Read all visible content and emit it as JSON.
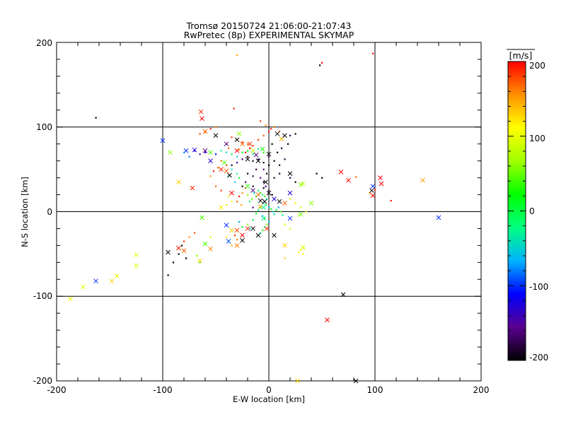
{
  "chart_data": {
    "type": "scatter",
    "title": "Tromsø 20150724 21:06:00-21:07:43",
    "subtitle": "RwPretec (8p) EXPERIMENTAL SKYMAP",
    "xlabel": "E-W location [km]",
    "ylabel": "N-S location [km]",
    "xlim": [
      -200,
      200
    ],
    "ylim": [
      -200,
      200
    ],
    "x_ticks": [
      "-200",
      "-100",
      "0",
      "100",
      "200"
    ],
    "y_ticks": [
      "-200",
      "-100",
      "0",
      "100",
      "200"
    ],
    "grid": "major lines at 0 and ±100 km",
    "colorbar": {
      "label": "[m/s]",
      "range": [
        -200,
        200
      ],
      "ticks": [
        "200",
        "100",
        "0",
        "-100",
        "-200"
      ],
      "colormap": [
        "#000000",
        "#5a0090",
        "#0000ff",
        "#00b4ff",
        "#00ff80",
        "#00ff00",
        "#a0ff00",
        "#ffff00",
        "#ff9000",
        "#ff0000"
      ]
    },
    "points_dot": [
      [
        -30,
        185,
        150
      ],
      [
        50,
        176,
        200
      ],
      [
        48,
        173,
        -200
      ],
      [
        98,
        187,
        200
      ],
      [
        -163,
        111,
        -200
      ],
      [
        -65,
        92,
        180
      ],
      [
        -60,
        94,
        170
      ],
      [
        -55,
        98,
        190
      ],
      [
        -50,
        100,
        160
      ],
      [
        -35,
        88,
        180
      ],
      [
        -30,
        85,
        170
      ],
      [
        -25,
        82,
        190
      ],
      [
        -20,
        80,
        160
      ],
      [
        -15,
        78,
        180
      ],
      [
        -40,
        80,
        190
      ],
      [
        -38,
        75,
        170
      ],
      [
        -28,
        73,
        150
      ],
      [
        -22,
        70,
        190
      ],
      [
        -18,
        75,
        200
      ],
      [
        -10,
        85,
        180
      ],
      [
        -5,
        90,
        170
      ],
      [
        0,
        95,
        190
      ],
      [
        5,
        100,
        160
      ],
      [
        10,
        95,
        170
      ],
      [
        -45,
        72,
        -30
      ],
      [
        -40,
        70,
        -40
      ],
      [
        -35,
        68,
        0
      ],
      [
        -30,
        65,
        -50
      ],
      [
        -25,
        70,
        20
      ],
      [
        -20,
        72,
        10
      ],
      [
        -15,
        68,
        -20
      ],
      [
        -10,
        74,
        -30
      ],
      [
        -5,
        70,
        30
      ],
      [
        -50,
        68,
        -100
      ],
      [
        -60,
        70,
        -130
      ],
      [
        -65,
        68,
        -150
      ],
      [
        -70,
        72,
        -120
      ],
      [
        -75,
        65,
        -80
      ],
      [
        -80,
        70,
        -60
      ],
      [
        -20,
        65,
        -200
      ],
      [
        -15,
        60,
        -190
      ],
      [
        -10,
        62,
        -180
      ],
      [
        -5,
        58,
        -200
      ],
      [
        0,
        65,
        -170
      ],
      [
        5,
        60,
        -200
      ],
      [
        10,
        55,
        -190
      ],
      [
        15,
        62,
        -180
      ],
      [
        0,
        55,
        -200
      ],
      [
        -5,
        50,
        -160
      ],
      [
        -12,
        50,
        -180
      ],
      [
        -25,
        62,
        -170
      ],
      [
        -30,
        58,
        -150
      ],
      [
        -35,
        55,
        -190
      ],
      [
        8,
        70,
        -200
      ],
      [
        12,
        75,
        -180
      ],
      [
        18,
        80,
        -200
      ],
      [
        20,
        90,
        -170
      ],
      [
        25,
        92,
        -200
      ],
      [
        3,
        80,
        -200
      ],
      [
        -2,
        45,
        -200
      ],
      [
        5,
        40,
        -190
      ],
      [
        10,
        45,
        -180
      ],
      [
        -8,
        40,
        -150
      ],
      [
        -15,
        42,
        -170
      ],
      [
        -20,
        45,
        -200
      ],
      [
        -22,
        35,
        -160
      ],
      [
        -25,
        30,
        -200
      ],
      [
        -15,
        30,
        -180
      ],
      [
        -5,
        35,
        -190
      ],
      [
        -10,
        25,
        0
      ],
      [
        -8,
        22,
        30
      ],
      [
        -6,
        20,
        -20
      ],
      [
        -4,
        18,
        40
      ],
      [
        -2,
        15,
        -40
      ],
      [
        -12,
        18,
        20
      ],
      [
        -14,
        22,
        -30
      ],
      [
        -16,
        15,
        50
      ],
      [
        -18,
        12,
        -10
      ],
      [
        -20,
        20,
        60
      ],
      [
        -5,
        10,
        -50
      ],
      [
        -3,
        8,
        10
      ],
      [
        0,
        5,
        -60
      ],
      [
        2,
        3,
        30
      ],
      [
        4,
        0,
        -40
      ],
      [
        -8,
        5,
        40
      ],
      [
        -10,
        2,
        -20
      ],
      [
        -12,
        -2,
        20
      ],
      [
        -6,
        -5,
        -60
      ],
      [
        -4,
        -8,
        30
      ],
      [
        5,
        -3,
        -40
      ],
      [
        7,
        2,
        10
      ],
      [
        9,
        5,
        -70
      ],
      [
        11,
        0,
        40
      ],
      [
        13,
        -4,
        -30
      ],
      [
        0,
        -12,
        -60
      ],
      [
        -2,
        -15,
        50
      ],
      [
        -4,
        -18,
        -20
      ],
      [
        -6,
        -22,
        30
      ],
      [
        -8,
        -25,
        -40
      ],
      [
        -15,
        -10,
        0
      ],
      [
        -20,
        -15,
        60
      ],
      [
        -18,
        -20,
        -50
      ],
      [
        -25,
        -18,
        20
      ],
      [
        -28,
        -12,
        -70
      ],
      [
        -5,
        28,
        -200
      ],
      [
        -3,
        30,
        -150
      ],
      [
        0,
        25,
        -180
      ],
      [
        3,
        20,
        -200
      ],
      [
        -15,
        5,
        -160
      ],
      [
        -22,
        28,
        180
      ],
      [
        -25,
        22,
        160
      ],
      [
        -28,
        18,
        190
      ],
      [
        -30,
        12,
        170
      ],
      [
        -26,
        8,
        150
      ],
      [
        -35,
        12,
        100
      ],
      [
        -40,
        8,
        120
      ],
      [
        -38,
        18,
        90
      ],
      [
        20,
        15,
        100
      ],
      [
        25,
        10,
        120
      ],
      [
        30,
        5,
        80
      ],
      [
        35,
        0,
        110
      ],
      [
        28,
        -5,
        90
      ],
      [
        15,
        -15,
        100
      ],
      [
        20,
        -20,
        80
      ],
      [
        -70,
        -25,
        180
      ],
      [
        -75,
        -30,
        160
      ],
      [
        -80,
        -35,
        190
      ],
      [
        -82,
        -40,
        -200
      ],
      [
        -90,
        -60,
        -200
      ],
      [
        -95,
        -75,
        -200
      ],
      [
        -85,
        -50,
        -200
      ],
      [
        -78,
        -55,
        -200
      ],
      [
        -65,
        -60,
        40
      ],
      [
        -68,
        -52,
        60
      ],
      [
        -40,
        -30,
        120
      ],
      [
        -38,
        -35,
        100
      ],
      [
        -35,
        -40,
        140
      ],
      [
        -32,
        -28,
        180
      ],
      [
        -30,
        -33,
        160
      ],
      [
        30,
        -45,
        100
      ],
      [
        32,
        -50,
        110
      ],
      [
        28,
        -48,
        120
      ],
      [
        33,
        -43,
        90
      ],
      [
        15,
        -55,
        130
      ],
      [
        45,
        45,
        -200
      ],
      [
        50,
        40,
        -200
      ],
      [
        20,
        40,
        -180
      ],
      [
        25,
        35,
        -200
      ],
      [
        -55,
        -30,
        90
      ],
      [
        115,
        13,
        200
      ],
      [
        100,
        26,
        180
      ],
      [
        95,
        22,
        160
      ],
      [
        82,
        41,
        170
      ],
      [
        -33,
        122,
        190
      ],
      [
        -8,
        107,
        180
      ],
      [
        -3,
        102,
        160
      ],
      [
        2,
        98,
        190
      ],
      [
        -40,
        55,
        180
      ],
      [
        -45,
        60,
        160
      ],
      [
        -48,
        52,
        170
      ],
      [
        -52,
        48,
        190
      ],
      [
        -55,
        42,
        150
      ],
      [
        -50,
        30,
        170
      ],
      [
        -45,
        25,
        180
      ],
      [
        -35,
        50,
        -40
      ],
      [
        -30,
        45,
        -20
      ],
      [
        -28,
        40,
        0
      ],
      [
        -32,
        35,
        -60
      ],
      [
        -38,
        42,
        -30
      ]
    ],
    "points_x": [
      [
        -100,
        84,
        -100
      ],
      [
        -93,
        70,
        60
      ],
      [
        -78,
        72,
        -100
      ],
      [
        -70,
        73,
        -130
      ],
      [
        -60,
        95,
        170
      ],
      [
        -63,
        110,
        200
      ],
      [
        -64,
        118,
        190
      ],
      [
        -55,
        70,
        40
      ],
      [
        -42,
        58,
        40
      ],
      [
        -30,
        72,
        200
      ],
      [
        -25,
        80,
        170
      ],
      [
        -15,
        72,
        90
      ],
      [
        -10,
        60,
        -200
      ],
      [
        0,
        68,
        -200
      ],
      [
        8,
        92,
        -200
      ],
      [
        12,
        86,
        140
      ],
      [
        15,
        90,
        -200
      ],
      [
        20,
        45,
        -200
      ],
      [
        -20,
        30,
        30
      ],
      [
        -10,
        20,
        170
      ],
      [
        -15,
        25,
        -160
      ],
      [
        5,
        15,
        -130
      ],
      [
        15,
        10,
        170
      ],
      [
        30,
        32,
        60
      ],
      [
        40,
        10,
        60
      ],
      [
        30,
        -3,
        50
      ],
      [
        20,
        -8,
        -100
      ],
      [
        -2,
        -20,
        190
      ],
      [
        -8,
        13,
        -200
      ],
      [
        -5,
        5,
        -30
      ],
      [
        -5,
        -8,
        -30
      ],
      [
        -20,
        -20,
        190
      ],
      [
        -30,
        -22,
        180
      ],
      [
        -25,
        -28,
        200
      ],
      [
        -35,
        -22,
        130
      ],
      [
        -40,
        -16,
        -100
      ],
      [
        -38,
        -35,
        -90
      ],
      [
        -25,
        -34,
        -200
      ],
      [
        -15,
        -20,
        -200
      ],
      [
        -10,
        -28,
        -200
      ],
      [
        -30,
        -40,
        160
      ],
      [
        -55,
        -44,
        160
      ],
      [
        -80,
        -46,
        170
      ],
      [
        -95,
        -48,
        -200
      ],
      [
        -85,
        -43,
        190
      ],
      [
        -65,
        -58,
        130
      ],
      [
        -60,
        -38,
        40
      ],
      [
        -63,
        -7,
        40
      ],
      [
        -72,
        28,
        190
      ],
      [
        -85,
        35,
        130
      ],
      [
        -45,
        5,
        120
      ],
      [
        -35,
        22,
        200
      ],
      [
        -37,
        43,
        -200
      ],
      [
        -40,
        48,
        170
      ],
      [
        -45,
        50,
        190
      ],
      [
        -55,
        60,
        -130
      ],
      [
        -60,
        72,
        -160
      ],
      [
        -50,
        90,
        -200
      ],
      [
        -40,
        80,
        -160
      ],
      [
        -30,
        85,
        -200
      ],
      [
        -28,
        92,
        60
      ],
      [
        -18,
        80,
        190
      ],
      [
        -12,
        67,
        -160
      ],
      [
        -6,
        74,
        30
      ],
      [
        20,
        22,
        -130
      ],
      [
        32,
        33,
        80
      ],
      [
        -20,
        62,
        -200
      ],
      [
        10,
        12,
        -200
      ],
      [
        -8,
        6,
        150
      ],
      [
        5,
        -28,
        -200
      ],
      [
        15,
        -40,
        130
      ],
      [
        32,
        -42,
        100
      ],
      [
        -125,
        -51,
        100
      ],
      [
        -125,
        -64,
        100
      ],
      [
        -148,
        -82,
        130
      ],
      [
        -163,
        -82,
        -100
      ],
      [
        -175,
        -89,
        100
      ],
      [
        -187,
        -103,
        100
      ],
      [
        -143,
        -76,
        100
      ],
      [
        70,
        -98,
        -200
      ],
      [
        55,
        -128,
        200
      ],
      [
        82,
        -200,
        -200
      ],
      [
        27,
        -200,
        130
      ],
      [
        68,
        47,
        200
      ],
      [
        75,
        37,
        200
      ],
      [
        98,
        30,
        -100
      ],
      [
        97,
        25,
        -200
      ],
      [
        98,
        19,
        200
      ],
      [
        105,
        40,
        200
      ],
      [
        106,
        33,
        200
      ],
      [
        145,
        37,
        150
      ],
      [
        160,
        -7,
        -100
      ],
      [
        -3,
        35,
        -200
      ],
      [
        0,
        22,
        -200
      ],
      [
        -4,
        12,
        -200
      ]
    ]
  }
}
